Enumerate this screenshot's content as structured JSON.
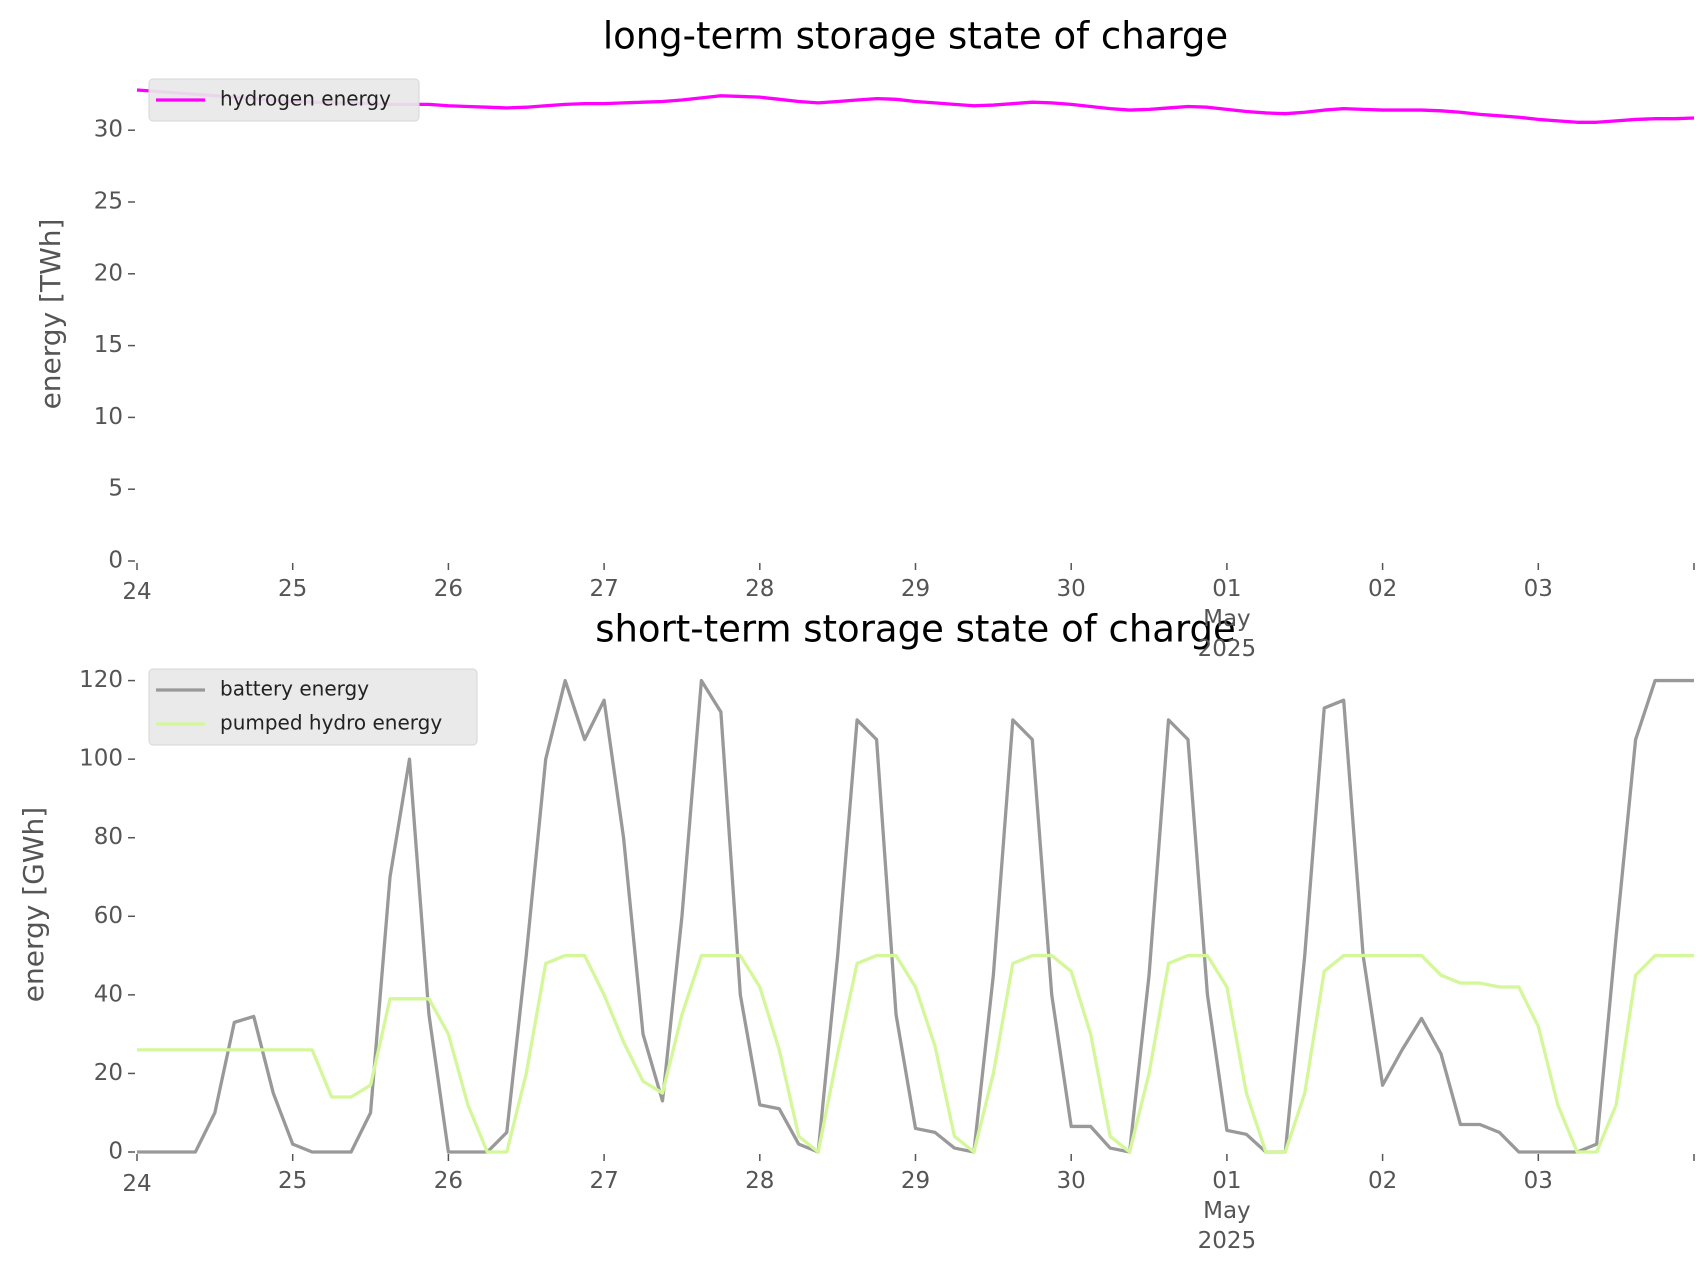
{
  "chart_data": [
    {
      "type": "line",
      "title": "long-term storage state of charge",
      "ylabel": "energy [TWh]",
      "legend": "upper left",
      "xlim": [
        "2025-04-24T00:00",
        "2025-05-04T00:00"
      ],
      "xticks": [
        {
          "value": "2025-04-24T00:00",
          "label": "24"
        },
        {
          "value": "2025-04-25T00:00",
          "label": "25"
        },
        {
          "value": "2025-04-26T00:00",
          "label": "26"
        },
        {
          "value": "2025-04-27T00:00",
          "label": "27"
        },
        {
          "value": "2025-04-28T00:00",
          "label": "28"
        },
        {
          "value": "2025-04-29T00:00",
          "label": "29"
        },
        {
          "value": "2025-04-30T00:00",
          "label": "30"
        },
        {
          "value": "2025-05-01T00:00",
          "label": "01\nMay\n2025"
        },
        {
          "value": "2025-05-02T00:00",
          "label": "02"
        },
        {
          "value": "2025-05-03T00:00",
          "label": "03"
        },
        {
          "value": "2025-05-04T00:00",
          "label": null
        }
      ],
      "ylim": [
        0,
        34.4
      ],
      "yticks": [
        0,
        5,
        10,
        15,
        20,
        25,
        30
      ],
      "x": [
        "2025-04-24T00:00",
        "2025-04-24T03:00",
        "2025-04-24T06:00",
        "2025-04-24T09:00",
        "2025-04-24T12:00",
        "2025-04-24T15:00",
        "2025-04-24T18:00",
        "2025-04-24T21:00",
        "2025-04-25T00:00",
        "2025-04-25T03:00",
        "2025-04-25T06:00",
        "2025-04-25T09:00",
        "2025-04-25T12:00",
        "2025-04-25T15:00",
        "2025-04-25T18:00",
        "2025-04-25T21:00",
        "2025-04-26T00:00",
        "2025-04-26T03:00",
        "2025-04-26T06:00",
        "2025-04-26T09:00",
        "2025-04-26T12:00",
        "2025-04-26T15:00",
        "2025-04-26T18:00",
        "2025-04-26T21:00",
        "2025-04-27T00:00",
        "2025-04-27T03:00",
        "2025-04-27T06:00",
        "2025-04-27T09:00",
        "2025-04-27T12:00",
        "2025-04-27T15:00",
        "2025-04-27T18:00",
        "2025-04-27T21:00",
        "2025-04-28T00:00",
        "2025-04-28T03:00",
        "2025-04-28T06:00",
        "2025-04-28T09:00",
        "2025-04-28T12:00",
        "2025-04-28T15:00",
        "2025-04-28T18:00",
        "2025-04-28T21:00",
        "2025-04-29T00:00",
        "2025-04-29T03:00",
        "2025-04-29T06:00",
        "2025-04-29T09:00",
        "2025-04-29T12:00",
        "2025-04-29T15:00",
        "2025-04-29T18:00",
        "2025-04-29T21:00",
        "2025-04-30T00:00",
        "2025-04-30T03:00",
        "2025-04-30T06:00",
        "2025-04-30T09:00",
        "2025-04-30T12:00",
        "2025-04-30T15:00",
        "2025-04-30T18:00",
        "2025-04-30T21:00",
        "2025-05-01T00:00",
        "2025-05-01T03:00",
        "2025-05-01T06:00",
        "2025-05-01T09:00",
        "2025-05-01T12:00",
        "2025-05-01T15:00",
        "2025-05-01T18:00",
        "2025-05-01T21:00",
        "2025-05-02T00:00",
        "2025-05-02T03:00",
        "2025-05-02T06:00",
        "2025-05-02T09:00",
        "2025-05-02T12:00",
        "2025-05-02T15:00",
        "2025-05-02T18:00",
        "2025-05-02T21:00",
        "2025-05-03T00:00",
        "2025-05-03T03:00",
        "2025-05-03T06:00",
        "2025-05-03T09:00",
        "2025-05-03T12:00",
        "2025-05-03T15:00",
        "2025-05-03T18:00",
        "2025-05-03T21:00",
        "2025-05-04T00:00"
      ],
      "series": [
        {
          "name": "hydrogen energy",
          "color": "#ff00ff",
          "values": [
            32.8,
            32.7,
            32.6,
            32.5,
            32.4,
            32.3,
            32.2,
            32.1,
            32.0,
            31.95,
            31.9,
            31.9,
            31.85,
            31.8,
            31.8,
            31.8,
            31.7,
            31.65,
            31.6,
            31.55,
            31.6,
            31.7,
            31.8,
            31.85,
            31.85,
            31.9,
            31.95,
            32.0,
            32.1,
            32.25,
            32.4,
            32.35,
            32.3,
            32.15,
            32.0,
            31.9,
            32.0,
            32.1,
            32.2,
            32.15,
            32.0,
            31.9,
            31.8,
            31.7,
            31.75,
            31.85,
            31.95,
            31.9,
            31.8,
            31.65,
            31.5,
            31.4,
            31.45,
            31.55,
            31.65,
            31.6,
            31.45,
            31.3,
            31.2,
            31.15,
            31.25,
            31.4,
            31.5,
            31.45,
            31.4,
            31.4,
            31.4,
            31.35,
            31.25,
            31.1,
            31.0,
            30.9,
            30.75,
            30.65,
            30.55,
            30.55,
            30.65,
            30.75,
            30.8,
            30.8,
            30.85
          ]
        }
      ]
    },
    {
      "type": "line",
      "title": "short-term storage state of charge",
      "ylabel": "energy [GWh]",
      "legend": "upper left",
      "xlim": [
        "2025-04-24T00:00",
        "2025-05-04T00:00"
      ],
      "xticks": [
        {
          "value": "2025-04-24T00:00",
          "label": "24"
        },
        {
          "value": "2025-04-25T00:00",
          "label": "25"
        },
        {
          "value": "2025-04-26T00:00",
          "label": "26"
        },
        {
          "value": "2025-04-27T00:00",
          "label": "27"
        },
        {
          "value": "2025-04-28T00:00",
          "label": "28"
        },
        {
          "value": "2025-04-29T00:00",
          "label": "29"
        },
        {
          "value": "2025-04-30T00:00",
          "label": "30"
        },
        {
          "value": "2025-05-01T00:00",
          "label": "01\nMay\n2025"
        },
        {
          "value": "2025-05-02T00:00",
          "label": "02"
        },
        {
          "value": "2025-05-03T00:00",
          "label": "03"
        },
        {
          "value": "2025-05-04T00:00",
          "label": null
        }
      ],
      "ylim": [
        0,
        126
      ],
      "yticks": [
        0,
        20,
        40,
        60,
        80,
        100,
        120
      ],
      "x": [
        "2025-04-24T00:00",
        "2025-04-24T03:00",
        "2025-04-24T06:00",
        "2025-04-24T09:00",
        "2025-04-24T12:00",
        "2025-04-24T15:00",
        "2025-04-24T18:00",
        "2025-04-24T21:00",
        "2025-04-25T00:00",
        "2025-04-25T03:00",
        "2025-04-25T06:00",
        "2025-04-25T09:00",
        "2025-04-25T12:00",
        "2025-04-25T15:00",
        "2025-04-25T18:00",
        "2025-04-25T21:00",
        "2025-04-26T00:00",
        "2025-04-26T03:00",
        "2025-04-26T06:00",
        "2025-04-26T09:00",
        "2025-04-26T12:00",
        "2025-04-26T15:00",
        "2025-04-26T18:00",
        "2025-04-26T21:00",
        "2025-04-27T00:00",
        "2025-04-27T03:00",
        "2025-04-27T06:00",
        "2025-04-27T09:00",
        "2025-04-27T12:00",
        "2025-04-27T15:00",
        "2025-04-27T18:00",
        "2025-04-27T21:00",
        "2025-04-28T00:00",
        "2025-04-28T03:00",
        "2025-04-28T06:00",
        "2025-04-28T09:00",
        "2025-04-28T12:00",
        "2025-04-28T15:00",
        "2025-04-28T18:00",
        "2025-04-28T21:00",
        "2025-04-29T00:00",
        "2025-04-29T03:00",
        "2025-04-29T06:00",
        "2025-04-29T09:00",
        "2025-04-29T12:00",
        "2025-04-29T15:00",
        "2025-04-29T18:00",
        "2025-04-29T21:00",
        "2025-04-30T00:00",
        "2025-04-30T03:00",
        "2025-04-30T06:00",
        "2025-04-30T09:00",
        "2025-04-30T12:00",
        "2025-04-30T15:00",
        "2025-04-30T18:00",
        "2025-04-30T21:00",
        "2025-05-01T00:00",
        "2025-05-01T03:00",
        "2025-05-01T06:00",
        "2025-05-01T09:00",
        "2025-05-01T12:00",
        "2025-05-01T15:00",
        "2025-05-01T18:00",
        "2025-05-01T21:00",
        "2025-05-02T00:00",
        "2025-05-02T03:00",
        "2025-05-02T06:00",
        "2025-05-02T09:00",
        "2025-05-02T12:00",
        "2025-05-02T15:00",
        "2025-05-02T18:00",
        "2025-05-02T21:00",
        "2025-05-03T00:00",
        "2025-05-03T03:00",
        "2025-05-03T06:00",
        "2025-05-03T09:00",
        "2025-05-03T12:00",
        "2025-05-03T15:00",
        "2025-05-03T18:00",
        "2025-05-03T21:00",
        "2025-05-04T00:00"
      ],
      "series": [
        {
          "name": "battery energy",
          "color": "#999999",
          "values": [
            0,
            0,
            0,
            0,
            10,
            33,
            34.5,
            15,
            2,
            0,
            0,
            0,
            10,
            70,
            100,
            35,
            0,
            0,
            0,
            5,
            50,
            100,
            120,
            105,
            115,
            80,
            30,
            13,
            60,
            120,
            112,
            40,
            12,
            11,
            2,
            0,
            50,
            110,
            105,
            35,
            6,
            5,
            1,
            0,
            45,
            110,
            105,
            40,
            6.5,
            6.5,
            1,
            0,
            45,
            110,
            105,
            40,
            5.5,
            4.5,
            0,
            0,
            50,
            113,
            115,
            50,
            17,
            26,
            34,
            25,
            7,
            7,
            5,
            0,
            0,
            0,
            0,
            2,
            55,
            105,
            120,
            120,
            120
          ]
        },
        {
          "name": "pumped hydro energy",
          "color": "#d4f79a",
          "values": [
            26,
            26,
            26,
            26,
            26,
            26,
            26,
            26,
            26,
            26,
            14,
            14,
            17,
            39,
            39,
            39,
            30,
            12,
            0,
            0,
            20,
            48,
            50,
            50,
            40,
            28,
            18,
            15,
            35,
            50,
            50,
            50,
            42,
            26,
            4,
            0,
            25,
            48,
            50,
            50,
            42,
            27,
            4,
            0,
            20,
            48,
            50,
            50,
            46,
            30,
            4,
            0,
            20,
            48,
            50,
            50,
            42,
            15,
            0,
            0,
            15,
            46,
            50,
            50,
            50,
            50,
            50,
            45,
            43,
            43,
            42,
            42,
            32,
            12,
            0,
            0,
            12,
            45,
            50,
            50,
            50
          ]
        }
      ]
    }
  ]
}
